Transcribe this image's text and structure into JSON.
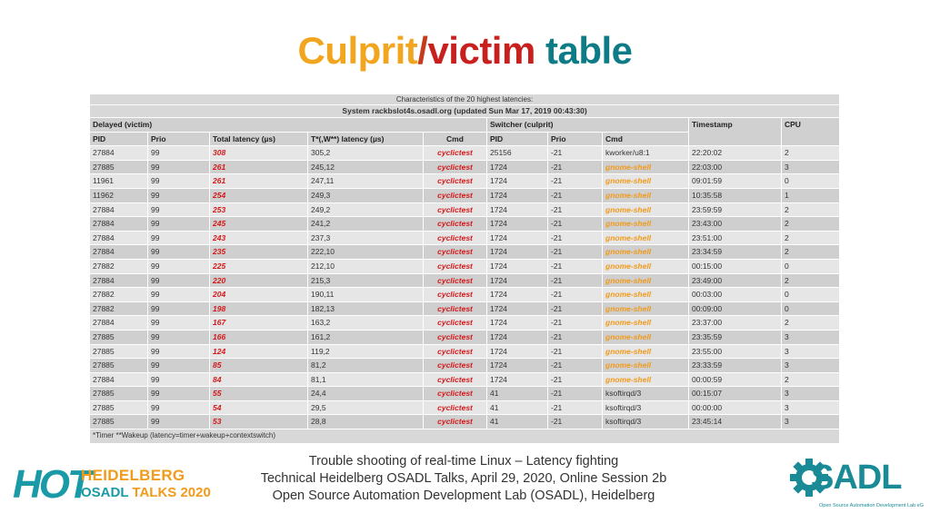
{
  "title": {
    "culprit": "Culprit",
    "slash": "/",
    "victim": "victim",
    "rest": " table"
  },
  "table": {
    "caption_line1": "Characteristics of the 20 highest latencies:",
    "caption_line2": "System rackbslot4s.osadl.org (updated Sun Mar 17, 2019 00:43:30)",
    "group_delayed": "Delayed (victim)",
    "group_switcher": "Switcher (culprit)",
    "col_timestamp": "Timestamp",
    "col_cpu": "CPU",
    "columns": [
      "PID",
      "Prio",
      "Total latency (µs)",
      "T*(,W**) latency (µs)",
      "Cmd",
      "PID",
      "Prio",
      "Cmd"
    ],
    "rows": [
      {
        "pid": "27884",
        "prio": "99",
        "total": "308",
        "tw": "305,2",
        "cmd": "cyclictest",
        "spid": "25156",
        "sprio": "-21",
        "scmd": "kworker/u8:1",
        "ts": "22:20:02",
        "cpu": "2"
      },
      {
        "pid": "27885",
        "prio": "99",
        "total": "261",
        "tw": "245,12",
        "cmd": "cyclictest",
        "spid": "1724",
        "sprio": "-21",
        "scmd": "gnome-shell",
        "ts": "22:03:00",
        "cpu": "3"
      },
      {
        "pid": "11961",
        "prio": "99",
        "total": "261",
        "tw": "247,11",
        "cmd": "cyclictest",
        "spid": "1724",
        "sprio": "-21",
        "scmd": "gnome-shell",
        "ts": "09:01:59",
        "cpu": "0"
      },
      {
        "pid": "11962",
        "prio": "99",
        "total": "254",
        "tw": "249,3",
        "cmd": "cyclictest",
        "spid": "1724",
        "sprio": "-21",
        "scmd": "gnome-shell",
        "ts": "10:35:58",
        "cpu": "1"
      },
      {
        "pid": "27884",
        "prio": "99",
        "total": "253",
        "tw": "249,2",
        "cmd": "cyclictest",
        "spid": "1724",
        "sprio": "-21",
        "scmd": "gnome-shell",
        "ts": "23:59:59",
        "cpu": "2"
      },
      {
        "pid": "27884",
        "prio": "99",
        "total": "245",
        "tw": "241,2",
        "cmd": "cyclictest",
        "spid": "1724",
        "sprio": "-21",
        "scmd": "gnome-shell",
        "ts": "23:43:00",
        "cpu": "2"
      },
      {
        "pid": "27884",
        "prio": "99",
        "total": "243",
        "tw": "237,3",
        "cmd": "cyclictest",
        "spid": "1724",
        "sprio": "-21",
        "scmd": "gnome-shell",
        "ts": "23:51:00",
        "cpu": "2"
      },
      {
        "pid": "27884",
        "prio": "99",
        "total": "235",
        "tw": "222,10",
        "cmd": "cyclictest",
        "spid": "1724",
        "sprio": "-21",
        "scmd": "gnome-shell",
        "ts": "23:34:59",
        "cpu": "2"
      },
      {
        "pid": "27882",
        "prio": "99",
        "total": "225",
        "tw": "212,10",
        "cmd": "cyclictest",
        "spid": "1724",
        "sprio": "-21",
        "scmd": "gnome-shell",
        "ts": "00:15:00",
        "cpu": "0"
      },
      {
        "pid": "27884",
        "prio": "99",
        "total": "220",
        "tw": "215,3",
        "cmd": "cyclictest",
        "spid": "1724",
        "sprio": "-21",
        "scmd": "gnome-shell",
        "ts": "23:49:00",
        "cpu": "2"
      },
      {
        "pid": "27882",
        "prio": "99",
        "total": "204",
        "tw": "190,11",
        "cmd": "cyclictest",
        "spid": "1724",
        "sprio": "-21",
        "scmd": "gnome-shell",
        "ts": "00:03:00",
        "cpu": "0"
      },
      {
        "pid": "27882",
        "prio": "99",
        "total": "198",
        "tw": "182,13",
        "cmd": "cyclictest",
        "spid": "1724",
        "sprio": "-21",
        "scmd": "gnome-shell",
        "ts": "00:09:00",
        "cpu": "0"
      },
      {
        "pid": "27884",
        "prio": "99",
        "total": "167",
        "tw": "163,2",
        "cmd": "cyclictest",
        "spid": "1724",
        "sprio": "-21",
        "scmd": "gnome-shell",
        "ts": "23:37:00",
        "cpu": "2"
      },
      {
        "pid": "27885",
        "prio": "99",
        "total": "166",
        "tw": "161,2",
        "cmd": "cyclictest",
        "spid": "1724",
        "sprio": "-21",
        "scmd": "gnome-shell",
        "ts": "23:35:59",
        "cpu": "3"
      },
      {
        "pid": "27885",
        "prio": "99",
        "total": "124",
        "tw": "119,2",
        "cmd": "cyclictest",
        "spid": "1724",
        "sprio": "-21",
        "scmd": "gnome-shell",
        "ts": "23:55:00",
        "cpu": "3"
      },
      {
        "pid": "27885",
        "prio": "99",
        "total": "85",
        "tw": "81,2",
        "cmd": "cyclictest",
        "spid": "1724",
        "sprio": "-21",
        "scmd": "gnome-shell",
        "ts": "23:33:59",
        "cpu": "3"
      },
      {
        "pid": "27884",
        "prio": "99",
        "total": "84",
        "tw": "81,1",
        "cmd": "cyclictest",
        "spid": "1724",
        "sprio": "-21",
        "scmd": "gnome-shell",
        "ts": "00:00:59",
        "cpu": "2"
      },
      {
        "pid": "27885",
        "prio": "99",
        "total": "55",
        "tw": "24,4",
        "cmd": "cyclictest",
        "spid": "41",
        "sprio": "-21",
        "scmd": "ksoftirqd/3",
        "ts": "00:15:07",
        "cpu": "3"
      },
      {
        "pid": "27885",
        "prio": "99",
        "total": "54",
        "tw": "29,5",
        "cmd": "cyclictest",
        "spid": "41",
        "sprio": "-21",
        "scmd": "ksoftirqd/3",
        "ts": "00:00:00",
        "cpu": "3"
      },
      {
        "pid": "27885",
        "prio": "99",
        "total": "53",
        "tw": "28,8",
        "cmd": "cyclictest",
        "spid": "41",
        "sprio": "-21",
        "scmd": "ksoftirqd/3",
        "ts": "23:45:14",
        "cpu": "3"
      }
    ],
    "footnote": "*Timer  **Wakeup  (latency=timer+wakeup+contextswitch)"
  },
  "footer": {
    "line1": "Trouble shooting of real-time Linux – Latency fighting",
    "line2": "Technical Heidelberg OSADL Talks, April 29, 2020, Online Session 2b",
    "line3": "Open Source Automation Development Lab (OSADL), Heidelberg"
  },
  "hot_logo": {
    "big": "HOT",
    "line1": "HEIDELBERG",
    "line2a": "OSADL",
    "line2b": "TALKS 2020"
  },
  "osadl_logo": {
    "text": "SADL",
    "sub": "Open Source Automation Development Lab eG"
  },
  "colors": {
    "orange": "#f2a51e",
    "red": "#c8201e",
    "teal": "#0e7c86",
    "latency_red": "#d4181a"
  },
  "icons": {
    "osadl_gear": "gear-icon"
  }
}
